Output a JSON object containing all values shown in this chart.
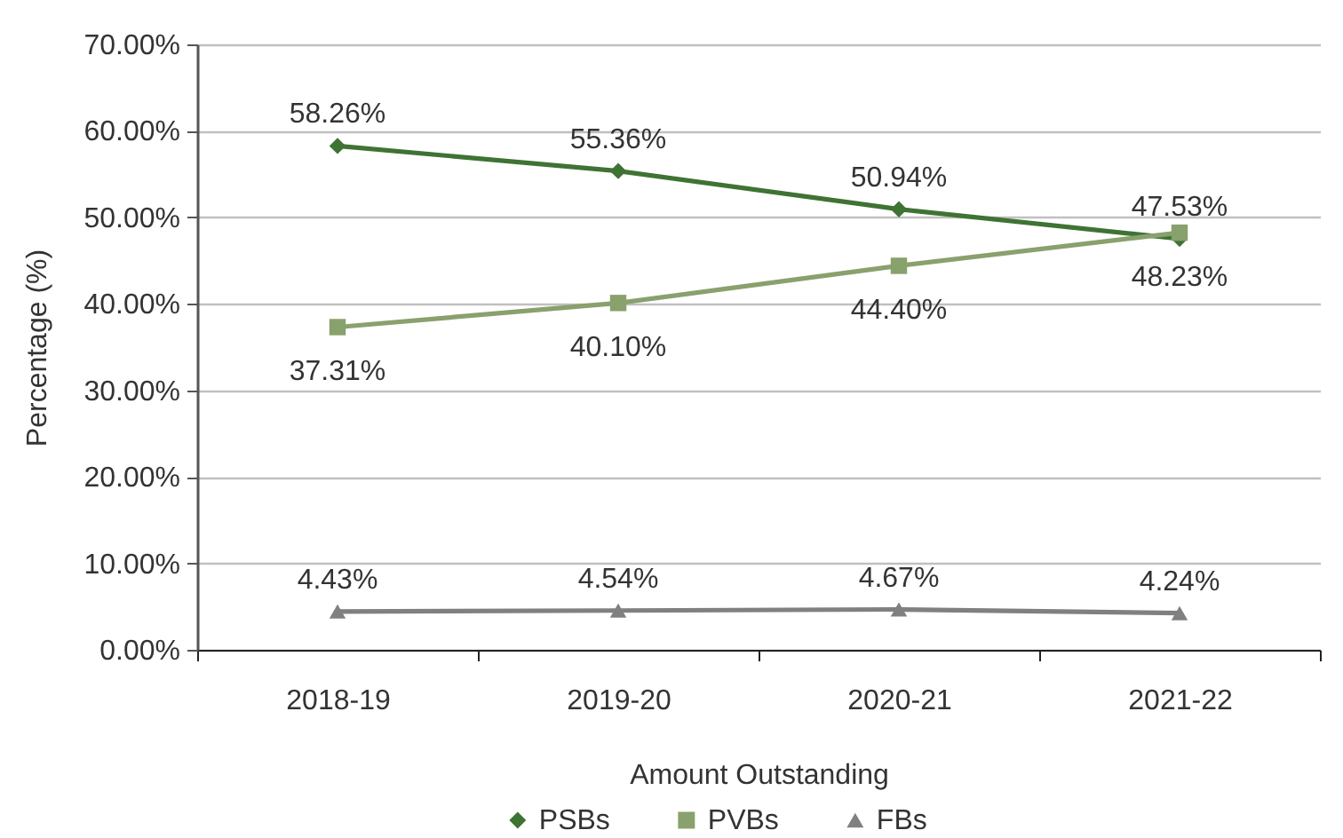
{
  "chart_data": {
    "type": "line",
    "categories": [
      "2018-19",
      "2019-20",
      "2020-21",
      "2021-22"
    ],
    "xlabel": "Amount Outstanding",
    "ylabel": "Percentage (%)",
    "ylim": [
      0,
      70
    ],
    "yticks": [
      {
        "value": 0,
        "label": "0.00%"
      },
      {
        "value": 10,
        "label": "10.00%"
      },
      {
        "value": 20,
        "label": "20.00%"
      },
      {
        "value": 30,
        "label": "30.00%"
      },
      {
        "value": 40,
        "label": "40.00%"
      },
      {
        "value": 50,
        "label": "50.00%"
      },
      {
        "value": 60,
        "label": "60.00%"
      },
      {
        "value": 70,
        "label": "70.00%"
      }
    ],
    "grid": "y",
    "legend": "bottom",
    "line_style": "solid",
    "series": [
      {
        "name": "PSBs",
        "color": "#3f7334",
        "marker": "diamond",
        "values": [
          58.26,
          55.36,
          50.94,
          47.53
        ],
        "value_labels": [
          "58.26%",
          "55.36%",
          "50.94%",
          "47.53%"
        ]
      },
      {
        "name": "PVBs",
        "color": "#89a16d",
        "marker": "square",
        "values": [
          37.31,
          40.1,
          44.4,
          48.23
        ],
        "value_labels": [
          "37.31%",
          "40.10%",
          "44.40%",
          "48.23%"
        ]
      },
      {
        "name": "FBs",
        "color": "#808080",
        "marker": "triangle",
        "values": [
          4.43,
          4.54,
          4.67,
          4.24
        ],
        "value_labels": [
          "4.43%",
          "4.54%",
          "4.67%",
          "4.24%"
        ]
      }
    ]
  }
}
